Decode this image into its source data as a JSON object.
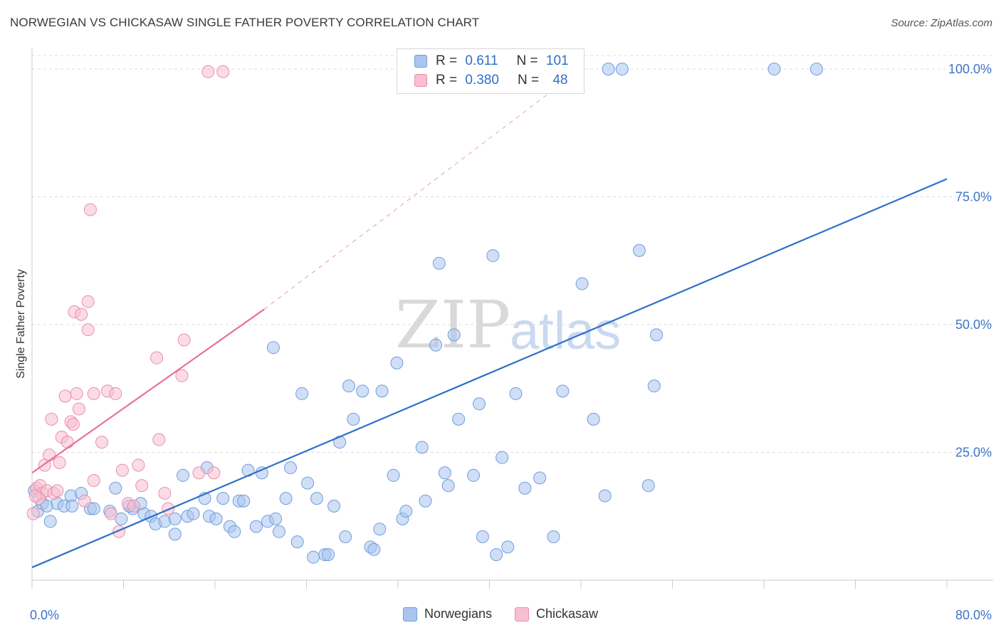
{
  "title": "NORWEGIAN VS CHICKASAW SINGLE FATHER POVERTY CORRELATION CHART",
  "source": "Source: ZipAtlas.com",
  "watermark": {
    "zip": "ZIP",
    "atlas": "atlas"
  },
  "legend_top": {
    "rows": [
      {
        "r_label": "R =",
        "r_value": "0.611",
        "n_label": "N =",
        "n_value": "101",
        "color": "#a9c5ef",
        "border": "#6f9de0"
      },
      {
        "r_label": "R =",
        "r_value": "0.380",
        "n_label": "N =",
        "n_value": "48",
        "color": "#f7bfd0",
        "border": "#ea8eab"
      }
    ]
  },
  "chart_data": {
    "type": "scatter",
    "xlabel": "",
    "ylabel": "Single Father Poverty",
    "xlim": [
      0,
      80
    ],
    "ylim": [
      0,
      100
    ],
    "x_tick_labels": [
      {
        "value": 0,
        "label": "0.0%"
      },
      {
        "value": 80,
        "label": "80.0%"
      }
    ],
    "y_tick_labels": [
      {
        "value": 25,
        "label": "25.0%"
      },
      {
        "value": 50,
        "label": "50.0%"
      },
      {
        "value": 75,
        "label": "75.0%"
      },
      {
        "value": 100,
        "label": "100.0%"
      }
    ],
    "grid": "horizontal dashed",
    "legend_placement": "bottom-center",
    "series": [
      {
        "name": "Norwegians",
        "color": "#6f9de0",
        "fill": "#a9c5ef",
        "trend": {
          "x": [
            0,
            80
          ],
          "y": [
            2.5,
            78.5
          ],
          "color": "#2f6fc9"
        },
        "points": [
          [
            0.2,
            17.5
          ],
          [
            0.5,
            13.5
          ],
          [
            0.9,
            15
          ],
          [
            1.3,
            14.5
          ],
          [
            1.6,
            11.5
          ],
          [
            2.2,
            15
          ],
          [
            2.8,
            14.5
          ],
          [
            3.4,
            16.5
          ],
          [
            3.5,
            14.5
          ],
          [
            4.3,
            17
          ],
          [
            5.1,
            14
          ],
          [
            5.4,
            14
          ],
          [
            6.8,
            13.5
          ],
          [
            7.3,
            18
          ],
          [
            7.8,
            12
          ],
          [
            8.8,
            14
          ],
          [
            8.5,
            14.5
          ],
          [
            9.8,
            13
          ],
          [
            9.5,
            15
          ],
          [
            10.4,
            12.5
          ],
          [
            10.8,
            11
          ],
          [
            11.6,
            11.5
          ],
          [
            12.5,
            12
          ],
          [
            12.5,
            9
          ],
          [
            13.2,
            20.5
          ],
          [
            13.6,
            12.5
          ],
          [
            14.1,
            13
          ],
          [
            15.1,
            16
          ],
          [
            15.5,
            12.5
          ],
          [
            15.3,
            22
          ],
          [
            16.1,
            12
          ],
          [
            16.7,
            16
          ],
          [
            17.3,
            10.5
          ],
          [
            17.7,
            9.5
          ],
          [
            18.1,
            15.5
          ],
          [
            18.5,
            15.5
          ],
          [
            18.9,
            21.5
          ],
          [
            19.6,
            10.5
          ],
          [
            20.1,
            21
          ],
          [
            20.6,
            11.5
          ],
          [
            21.1,
            45.5
          ],
          [
            21.3,
            12
          ],
          [
            21.6,
            9.5
          ],
          [
            22.2,
            16
          ],
          [
            22.6,
            22
          ],
          [
            23.6,
            36.5
          ],
          [
            23.2,
            7.5
          ],
          [
            24.1,
            19
          ],
          [
            24.6,
            4.5
          ],
          [
            24.9,
            16
          ],
          [
            25.6,
            5
          ],
          [
            25.9,
            5
          ],
          [
            26.4,
            14.5
          ],
          [
            26.9,
            27
          ],
          [
            27.4,
            8.5
          ],
          [
            27.7,
            38
          ],
          [
            28.1,
            31.5
          ],
          [
            28.9,
            37
          ],
          [
            29.6,
            6.5
          ],
          [
            29.9,
            6
          ],
          [
            30.6,
            37
          ],
          [
            30.4,
            10
          ],
          [
            31.6,
            20.5
          ],
          [
            31.9,
            42.5
          ],
          [
            32.4,
            12
          ],
          [
            32.7,
            13.5
          ],
          [
            34.1,
            26
          ],
          [
            34.4,
            15.5
          ],
          [
            35.3,
            46
          ],
          [
            35.6,
            62
          ],
          [
            36.1,
            21
          ],
          [
            36.4,
            18.5
          ],
          [
            36.9,
            48
          ],
          [
            37.3,
            31.5
          ],
          [
            38.6,
            20.5
          ],
          [
            39.1,
            34.5
          ],
          [
            39.4,
            8.5
          ],
          [
            40.3,
            63.5
          ],
          [
            40.6,
            5
          ],
          [
            41.1,
            24
          ],
          [
            41.6,
            6.5
          ],
          [
            42.3,
            36.5
          ],
          [
            43.1,
            18
          ],
          [
            44.4,
            20
          ],
          [
            45.6,
            8.5
          ],
          [
            46.4,
            37
          ],
          [
            48.1,
            58
          ],
          [
            49.1,
            31.5
          ],
          [
            50.1,
            16.5
          ],
          [
            53.1,
            64.5
          ],
          [
            54.6,
            48
          ],
          [
            54.4,
            38
          ],
          [
            53.9,
            18.5
          ],
          [
            42.6,
            100
          ],
          [
            44.1,
            100
          ],
          [
            50.4,
            100
          ],
          [
            51.6,
            100
          ],
          [
            64.9,
            100
          ],
          [
            68.6,
            100
          ],
          [
            36.9,
            100
          ],
          [
            45.3,
            100
          ]
        ]
      },
      {
        "name": "Chickasaw",
        "color": "#ea8eab",
        "fill": "#f7bfd0",
        "trend": {
          "x": [
            0,
            20.3
          ],
          "y": [
            21,
            53
          ],
          "color": "#e8719a"
        },
        "points": [
          [
            0.1,
            13
          ],
          [
            0.4,
            18
          ],
          [
            0.7,
            18.5
          ],
          [
            0.9,
            17
          ],
          [
            1.1,
            22.5
          ],
          [
            1.3,
            17.5
          ],
          [
            1.5,
            24.5
          ],
          [
            1.7,
            31.5
          ],
          [
            1.9,
            17
          ],
          [
            2.2,
            17.5
          ],
          [
            2.4,
            23
          ],
          [
            2.6,
            28
          ],
          [
            2.9,
            36
          ],
          [
            3.1,
            27
          ],
          [
            3.4,
            31
          ],
          [
            3.6,
            30.5
          ],
          [
            3.7,
            52.5
          ],
          [
            3.9,
            36.5
          ],
          [
            4.1,
            33.5
          ],
          [
            4.3,
            52
          ],
          [
            4.6,
            15.5
          ],
          [
            4.9,
            49
          ],
          [
            5.1,
            72.5
          ],
          [
            5.4,
            19.5
          ],
          [
            5.4,
            36.5
          ],
          [
            6.1,
            27
          ],
          [
            6.6,
            37
          ],
          [
            6.9,
            13
          ],
          [
            7.3,
            36.5
          ],
          [
            7.6,
            9.5
          ],
          [
            7.9,
            21.5
          ],
          [
            8.4,
            15
          ],
          [
            8.9,
            14.5
          ],
          [
            9.3,
            22.5
          ],
          [
            9.6,
            18.5
          ],
          [
            10.9,
            43.5
          ],
          [
            11.1,
            27.5
          ],
          [
            11.6,
            17
          ],
          [
            11.9,
            14
          ],
          [
            13.1,
            40
          ],
          [
            13.3,
            47
          ],
          [
            14.6,
            21
          ],
          [
            15.9,
            21
          ],
          [
            4.9,
            54.5
          ],
          [
            15.4,
            99.5
          ],
          [
            16.7,
            99.5
          ],
          [
            0.6,
            16
          ],
          [
            0.3,
            16.5
          ]
        ]
      }
    ],
    "dashed_extension": {
      "x": [
        20.3,
        48
      ],
      "y": [
        53,
        100
      ],
      "color": "#e8a0b8"
    }
  },
  "legend_bottom": [
    {
      "label": "Norwegians",
      "color": "#a9c5ef",
      "border": "#6f9de0"
    },
    {
      "label": "Chickasaw",
      "color": "#f7bfd0",
      "border": "#ea8eab"
    }
  ]
}
